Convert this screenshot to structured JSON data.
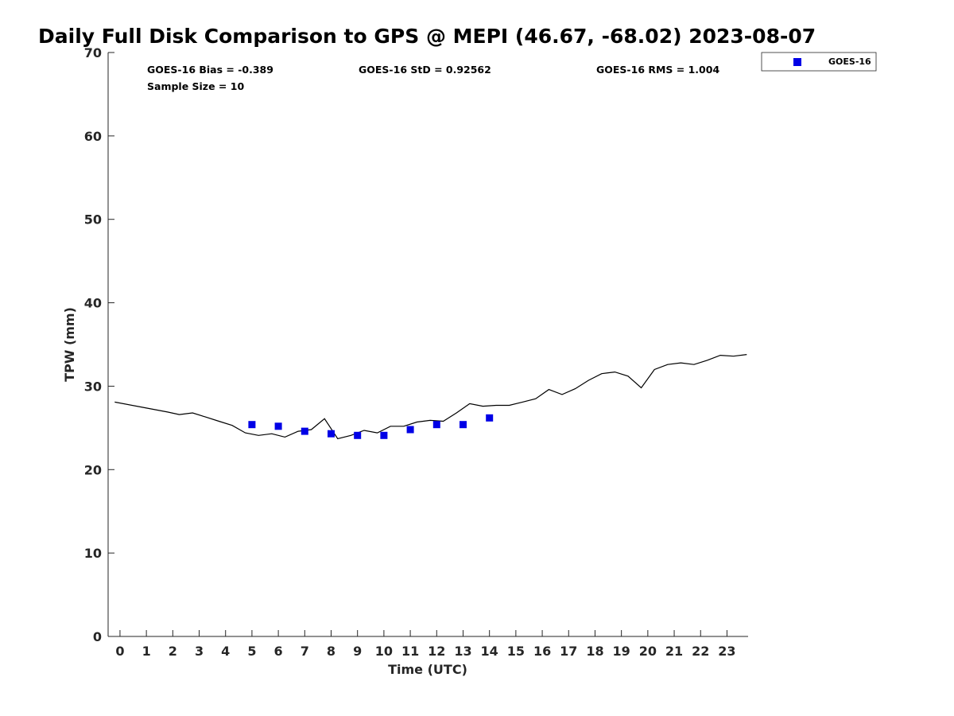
{
  "chart_data": {
    "type": "scatter",
    "title": "Daily Full Disk Comparison to GPS @ MEPI (46.67, -68.02) 2023-08-07",
    "xlabel": "Time (UTC)",
    "ylabel": "TPW (mm)",
    "xlim": [
      -0.45,
      23.8
    ],
    "ylim": [
      0,
      70
    ],
    "xticks": [
      "0",
      "1",
      "2",
      "3",
      "4",
      "5",
      "6",
      "7",
      "8",
      "9",
      "10",
      "11",
      "12",
      "13",
      "14",
      "15",
      "16",
      "17",
      "18",
      "19",
      "20",
      "21",
      "22",
      "23"
    ],
    "yticks": [
      "0",
      "10",
      "20",
      "30",
      "40",
      "50",
      "60",
      "70"
    ],
    "grid": false,
    "legend_position": "top-right",
    "stats": {
      "bias": "GOES-16 Bias = -0.389",
      "std": "GOES-16 StD = 0.92562",
      "rms": "GOES-16 RMS = 1.004",
      "sample_size": "Sample Size = 10"
    },
    "series": [
      {
        "kind": "line",
        "color": "#000000",
        "x": [
          -0.2,
          0.8,
          1.8,
          2.25,
          2.75,
          3.25,
          3.75,
          4.25,
          4.75,
          5.25,
          5.75,
          6.25,
          6.75,
          7.25,
          7.75,
          8.25,
          8.75,
          9.25,
          9.75,
          10.25,
          10.75,
          11.25,
          11.75,
          12.25,
          12.75,
          13.25,
          13.75,
          14.25,
          14.75,
          15.25,
          15.75,
          16.25,
          16.75,
          17.25,
          17.75,
          18.25,
          18.75,
          19.25,
          19.75,
          20.25,
          20.75,
          21.25,
          21.75,
          22.25,
          22.75,
          23.25,
          23.75
        ],
        "y": [
          28.1,
          27.5,
          26.9,
          26.6,
          26.8,
          26.3,
          25.8,
          25.3,
          24.4,
          24.1,
          24.3,
          23.9,
          24.6,
          24.8,
          26.1,
          23.7,
          24.1,
          24.7,
          24.4,
          25.2,
          25.2,
          25.7,
          25.9,
          25.8,
          26.8,
          27.9,
          27.6,
          27.7,
          27.7,
          28.1,
          28.5,
          29.6,
          29.0,
          29.7,
          30.7,
          31.5,
          31.7,
          31.2,
          29.8,
          32.0,
          32.6,
          32.8,
          32.6,
          33.1,
          33.7,
          33.6,
          33.8
        ]
      },
      {
        "kind": "scatter",
        "name": "GOES-16",
        "color": "#0000e6",
        "x": [
          5,
          6,
          7,
          8,
          9,
          10,
          11,
          12,
          13,
          14
        ],
        "y": [
          25.4,
          25.2,
          24.6,
          24.3,
          24.1,
          24.1,
          24.8,
          25.4,
          25.4,
          26.2
        ]
      }
    ]
  }
}
